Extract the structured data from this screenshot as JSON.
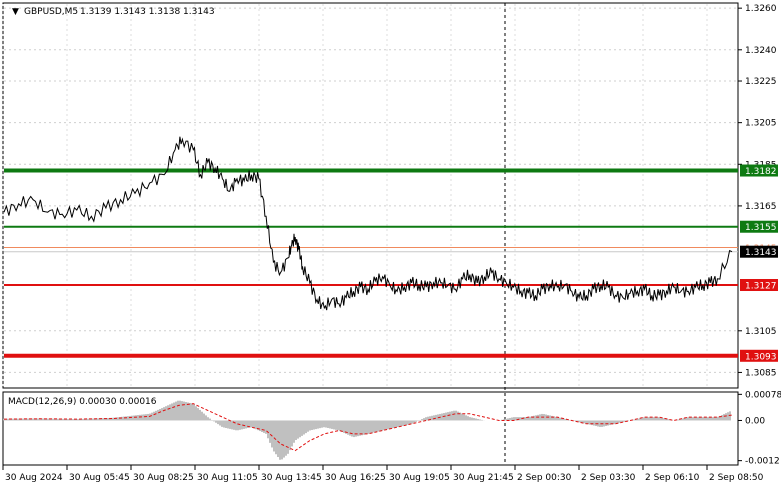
{
  "symbol_header": {
    "symbol": "GBPUSD,M5",
    "ohlc": "1.3139 1.3143 1.3138 1.3143"
  },
  "price_axis": {
    "labels": [
      "1.3260",
      "1.3240",
      "1.3225",
      "1.3205",
      "1.3185",
      "1.3165",
      "1.3105",
      "1.3085"
    ],
    "range": [
      1.3078,
      1.3262
    ]
  },
  "levels": [
    {
      "label": "1.3182",
      "value": 1.3182,
      "color": "#0e7a12",
      "kind": "resistance-strong"
    },
    {
      "label": "1.3155",
      "value": 1.3155,
      "color": "#0e7a12",
      "kind": "resistance"
    },
    {
      "label": "1.3145",
      "value": 1.3145,
      "color": "#f08a5d",
      "kind": "reference"
    },
    {
      "label": "1.3143",
      "value": 1.3143,
      "color": "#000000",
      "kind": "current-price"
    },
    {
      "label": "1.3127",
      "value": 1.3127,
      "color": "#e01010",
      "kind": "support"
    },
    {
      "label": "1.3093",
      "value": 1.3093,
      "color": "#e01010",
      "kind": "support-strong"
    }
  ],
  "macd": {
    "title": "MACD(12,26,9) 0.00030 0.00016",
    "axis_labels": [
      "0.00078",
      "0.00",
      "-0.0012"
    ],
    "range": [
      -0.0013,
      0.00082
    ],
    "histogram_color": "#c0c0c0",
    "signal_color": "#e01010"
  },
  "time_axis": {
    "labels": [
      "30 Aug 2024",
      "30 Aug 05:45",
      "30 Aug 08:25",
      "30 Aug 11:05",
      "30 Aug 13:45",
      "30 Aug 16:25",
      "30 Aug 19:05",
      "30 Aug 21:45",
      "2 Sep 00:30",
      "2 Sep 03:30",
      "2 Sep 06:10",
      "2 Sep 08:50"
    ]
  },
  "chart_data": {
    "type": "line",
    "price_series": {
      "name": "GBPUSD,M5",
      "x": [
        0,
        0.02,
        0.04,
        0.06,
        0.08,
        0.1,
        0.12,
        0.14,
        0.16,
        0.18,
        0.2,
        0.22,
        0.235,
        0.245,
        0.26,
        0.27,
        0.28,
        0.29,
        0.3,
        0.31,
        0.32,
        0.33,
        0.34,
        0.35,
        0.36,
        0.37,
        0.38,
        0.39,
        0.395,
        0.4,
        0.405,
        0.41,
        0.42,
        0.43,
        0.44,
        0.45,
        0.46,
        0.47,
        0.48,
        0.49,
        0.5,
        0.51,
        0.52,
        0.53,
        0.54,
        0.55,
        0.56,
        0.57,
        0.58,
        0.59,
        0.6,
        0.61,
        0.62,
        0.63,
        0.64,
        0.65,
        0.66,
        0.67,
        0.68,
        0.69,
        0.7,
        0.71,
        0.72,
        0.73,
        0.74,
        0.75,
        0.76,
        0.77,
        0.78,
        0.79,
        0.8,
        0.81,
        0.82,
        0.83,
        0.84,
        0.85,
        0.86,
        0.87,
        0.88,
        0.89,
        0.9,
        0.91,
        0.92,
        0.93,
        0.94,
        0.95,
        0.96,
        0.97,
        0.98,
        1.0
      ],
      "y": [
        1.3162,
        1.3166,
        1.3168,
        1.3162,
        1.3161,
        1.3163,
        1.316,
        1.3164,
        1.3168,
        1.3171,
        1.3176,
        1.318,
        1.3192,
        1.3197,
        1.3192,
        1.318,
        1.3186,
        1.3183,
        1.3178,
        1.3172,
        1.3178,
        1.3177,
        1.318,
        1.3178,
        1.316,
        1.3138,
        1.3133,
        1.314,
        1.3146,
        1.315,
        1.3144,
        1.3136,
        1.3128,
        1.312,
        1.3116,
        1.312,
        1.3118,
        1.3121,
        1.3124,
        1.3126,
        1.3125,
        1.3129,
        1.3131,
        1.3127,
        1.3124,
        1.3126,
        1.3128,
        1.3127,
        1.3126,
        1.3128,
        1.3128,
        1.3127,
        1.3125,
        1.313,
        1.3132,
        1.3128,
        1.3131,
        1.3133,
        1.313,
        1.3128,
        1.3126,
        1.3124,
        1.3123,
        1.3122,
        1.3125,
        1.3127,
        1.3126,
        1.3127,
        1.3124,
        1.3121,
        1.3122,
        1.3125,
        1.3127,
        1.3126,
        1.3122,
        1.3121,
        1.3123,
        1.3124,
        1.3125,
        1.3122,
        1.3122,
        1.3124,
        1.3126,
        1.3124,
        1.3124,
        1.3126,
        1.3127,
        1.3128,
        1.313,
        1.3143
      ],
      "x_is_fraction_of_time_axis": true
    },
    "macd_histogram": {
      "x": [
        0,
        0.05,
        0.1,
        0.15,
        0.2,
        0.22,
        0.24,
        0.26,
        0.28,
        0.3,
        0.32,
        0.34,
        0.36,
        0.37,
        0.38,
        0.39,
        0.4,
        0.42,
        0.44,
        0.46,
        0.48,
        0.5,
        0.52,
        0.54,
        0.56,
        0.58,
        0.6,
        0.62,
        0.64,
        0.66,
        0.68,
        0.7,
        0.72,
        0.74,
        0.76,
        0.78,
        0.8,
        0.82,
        0.84,
        0.86,
        0.88,
        0.9,
        0.92,
        0.94,
        0.96,
        0.98,
        1.0
      ],
      "y": [
        5e-05,
        6e-05,
        4e-05,
        8e-05,
        0.0002,
        0.0004,
        0.0006,
        0.0005,
        0.0001,
        -0.0002,
        -0.0003,
        -0.0002,
        -0.0004,
        -0.0009,
        -0.0012,
        -0.001,
        -0.0006,
        -0.0003,
        -0.0002,
        -0.0003,
        -0.0005,
        -0.0004,
        -0.0003,
        -0.0002,
        -0.0001,
        0.0001,
        0.0002,
        0.0003,
        0.0001,
        0.0,
        0.0,
        0.0001,
        0.0001,
        0.0002,
        0.0001,
        0.0,
        -0.0001,
        -0.0002,
        -0.0001,
        0.0,
        0.0001,
        0.0001,
        0.0,
        0.0001,
        0.0001,
        0.0001,
        0.0003
      ]
    },
    "macd_signal": {
      "x": [
        0,
        0.05,
        0.1,
        0.15,
        0.2,
        0.22,
        0.24,
        0.26,
        0.28,
        0.3,
        0.32,
        0.34,
        0.36,
        0.38,
        0.4,
        0.42,
        0.44,
        0.46,
        0.48,
        0.5,
        0.52,
        0.54,
        0.56,
        0.58,
        0.6,
        0.62,
        0.64,
        0.66,
        0.68,
        0.7,
        0.72,
        0.74,
        0.76,
        0.78,
        0.8,
        0.82,
        0.84,
        0.86,
        0.88,
        0.9,
        0.92,
        0.94,
        0.96,
        0.98,
        1.0
      ],
      "y": [
        4e-05,
        5e-05,
        4e-05,
        6e-05,
        0.00012,
        0.0003,
        0.00045,
        0.0005,
        0.0003,
        0.0001,
        -0.0001,
        -0.0002,
        -0.0003,
        -0.0007,
        -0.0009,
        -0.0006,
        -0.0004,
        -0.0003,
        -0.0004,
        -0.0004,
        -0.0003,
        -0.0002,
        -0.0001,
        0.0,
        0.0001,
        0.0002,
        0.0002,
        0.0001,
        0.0,
        0.0,
        0.0001,
        0.0001,
        0.0001,
        0.0,
        -0.0001,
        -0.0001,
        -0.0001,
        0.0,
        0.0001,
        0.0001,
        0.0,
        0.0001,
        0.0001,
        0.0001,
        0.00016
      ]
    }
  }
}
